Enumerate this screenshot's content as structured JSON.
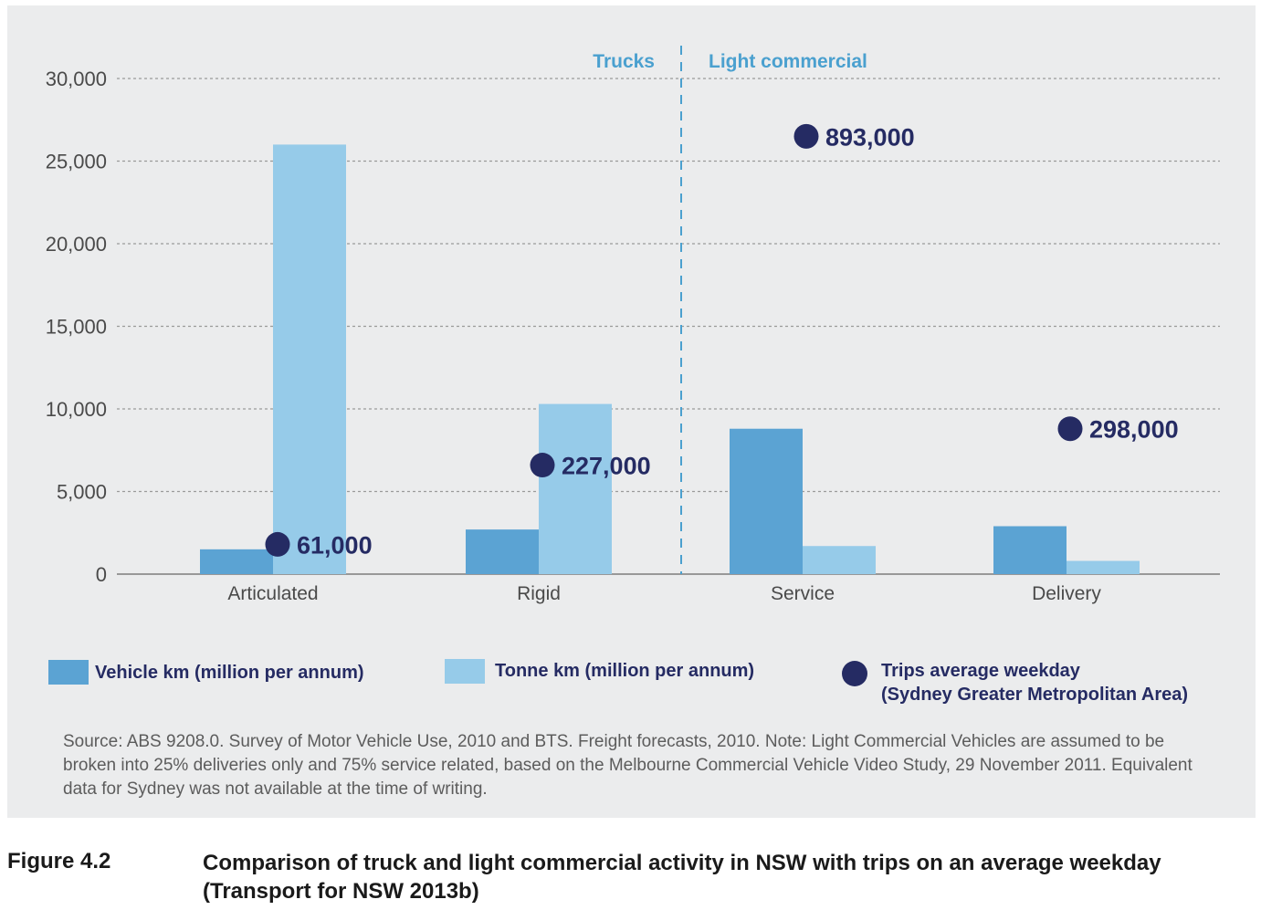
{
  "colors": {
    "vehicle_km": "#5ba3d3",
    "tonne_km": "#96cbe9",
    "trips": "#252b63",
    "divider": "#4aa0cf",
    "grid": "#9a9a9a"
  },
  "chart_data": {
    "type": "bar",
    "categories": [
      "Articulated",
      "Rigid",
      "Service",
      "Delivery"
    ],
    "series": [
      {
        "name": "Vehicle km (million per annum)",
        "values": [
          1500,
          2700,
          8800,
          2900
        ]
      },
      {
        "name": "Tonne km (million per annum)",
        "values": [
          26000,
          10300,
          1700,
          800
        ]
      }
    ],
    "trips": {
      "name": "Trips average weekday (Sydney Greater Metropolitan Area)",
      "labels": [
        "61,000",
        "227,000",
        "893,000",
        "298,000"
      ],
      "plot_y": [
        1800,
        6600,
        26500,
        8800
      ]
    },
    "ylim": [
      0,
      30000
    ],
    "yticks": [
      0,
      5000,
      10000,
      15000,
      20000,
      25000,
      30000
    ],
    "ytick_labels": [
      "0",
      "5,000",
      "10,000",
      "15,000",
      "20,000",
      "25,000",
      "30,000"
    ],
    "groups": [
      "Trucks",
      "Light commercial"
    ],
    "grid": true
  },
  "legend": {
    "vehicle_km": "Vehicle km (million per annum)",
    "tonne_km": "Tonne km (million per annum)",
    "trips_line1": "Trips average weekday",
    "trips_line2": "(Sydney Greater Metropolitan Area)"
  },
  "source": "Source: ABS 9208.0. Survey of Motor Vehicle Use, 2010 and BTS. Freight forecasts, 2010. Note: Light Commercial Vehicles are assumed to be broken into 25% deliveries only and 75% service related, based on the Melbourne Commercial Vehicle Video Study, 29 November 2011. Equivalent data for Sydney was not available at the time of writing.",
  "figure": {
    "number": "Figure 4.2",
    "title": "Comparison of truck and light commercial activity in NSW with trips on an average weekday (Transport for NSW 2013b)"
  }
}
